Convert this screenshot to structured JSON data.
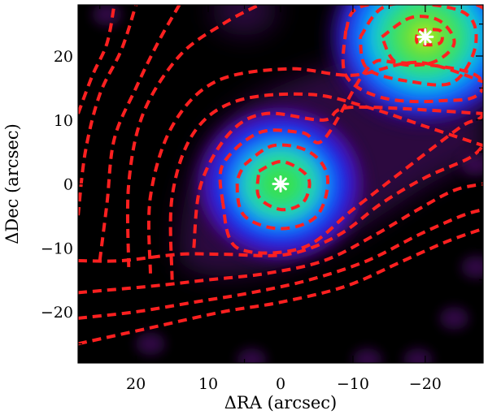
{
  "chart_data": {
    "type": "heatmap",
    "title": "",
    "xlabel": "ΔRA (arcsec)",
    "ylabel": "ΔDec (arcsec)",
    "xlim": [
      28,
      -28
    ],
    "ylim": [
      -28,
      28
    ],
    "x_reversed": true,
    "xticks": [
      20,
      10,
      0,
      -10,
      -20
    ],
    "xtick_labels": [
      "20",
      "10",
      "0",
      "−10",
      "−20"
    ],
    "yticks": [
      20,
      10,
      0,
      -10,
      -20
    ],
    "ytick_labels": [
      "20",
      "10",
      "0",
      "−10",
      "−20"
    ],
    "colormap": "black-purple-blue-cyan-green-yellow",
    "background_color": "#000000",
    "contour_color": "#ff2020",
    "contour_style": "dashed",
    "marker_color": "#ffffff",
    "sources": [
      {
        "x": 0,
        "y": 0,
        "peak_color": "green",
        "core_radius": 6
      },
      {
        "x": -20,
        "y": 23,
        "peak_color": "yellow-green",
        "core_radius": 7
      }
    ],
    "markers": [
      {
        "x": 0,
        "y": 0,
        "symbol": "asterisk"
      },
      {
        "x": -20,
        "y": 23,
        "symbol": "asterisk"
      }
    ],
    "contours": [
      {
        "level": 1,
        "points": [
          [
            -14,
            23
          ],
          [
            -18,
            26
          ],
          [
            -22,
            25.5
          ],
          [
            -24,
            22
          ],
          [
            -21,
            19
          ],
          [
            -16,
            19
          ],
          [
            -14,
            23
          ]
        ]
      },
      {
        "level": 2,
        "points": [
          [
            -11,
            23
          ],
          [
            -15,
            28
          ],
          [
            -25,
            27
          ],
          [
            -27,
            22
          ],
          [
            -24,
            16
          ],
          [
            -18,
            16
          ],
          [
            -12,
            18
          ],
          [
            -11,
            23
          ]
        ]
      },
      {
        "level": 3,
        "points": [
          [
            -9,
            24
          ],
          [
            -12,
            28
          ],
          [
            -28,
            27.5
          ],
          [
            -28,
            15
          ],
          [
            -22,
            13
          ],
          [
            -14,
            13.5
          ],
          [
            -9,
            17
          ],
          [
            -9,
            24
          ]
        ]
      },
      {
        "level": 4,
        "points": [
          [
            -19,
            24
          ],
          [
            -22,
            24
          ],
          [
            -22,
            22
          ],
          [
            -19,
            22
          ],
          [
            -19,
            24
          ]
        ]
      },
      {
        "level": 5,
        "points": [
          [
            3,
            2
          ],
          [
            0,
            3.5
          ],
          [
            -3,
            2
          ],
          [
            -4,
            0
          ],
          [
            -3,
            -3
          ],
          [
            0,
            -4
          ],
          [
            3,
            -2
          ],
          [
            3,
            2
          ]
        ]
      },
      {
        "level": 6,
        "points": [
          [
            5,
            3
          ],
          [
            1,
            6
          ],
          [
            -4,
            5
          ],
          [
            -6.5,
            1
          ],
          [
            -5,
            -5
          ],
          [
            0,
            -7
          ],
          [
            5,
            -5
          ],
          [
            6,
            0
          ],
          [
            5,
            3
          ]
        ]
      },
      {
        "level": 7,
        "points": [
          [
            8,
            -3
          ],
          [
            8,
            3
          ],
          [
            3,
            8
          ],
          [
            -3,
            8
          ],
          [
            -6,
            7
          ],
          [
            -12,
            18
          ],
          [
            -16,
            19
          ],
          [
            -27,
            17
          ],
          [
            -28,
            11
          ],
          [
            -25,
            9
          ],
          [
            -18,
            3
          ],
          [
            -10,
            -4
          ],
          [
            -3,
            -10
          ],
          [
            6,
            -10
          ],
          [
            8,
            -3
          ]
        ]
      },
      {
        "level": 8,
        "points": [
          [
            12,
            -10
          ],
          [
            11,
            0
          ],
          [
            7,
            8
          ],
          [
            2,
            11
          ],
          [
            -6,
            10
          ],
          [
            -10,
            12
          ],
          [
            -28,
            11
          ]
        ]
      },
      {
        "level": 9,
        "points": [
          [
            15,
            -15
          ],
          [
            15,
            -2
          ],
          [
            12,
            8
          ],
          [
            6,
            13
          ],
          [
            -4,
            14
          ],
          [
            -12,
            12
          ],
          [
            -20,
            9
          ],
          [
            -28,
            6
          ]
        ]
      },
      {
        "level": 10,
        "points": [
          [
            18,
            -14
          ],
          [
            18,
            -2
          ],
          [
            15,
            9
          ],
          [
            9,
            16
          ],
          [
            -1,
            18
          ],
          [
            -10,
            17
          ],
          [
            -19,
            19
          ],
          [
            -28,
            16
          ]
        ]
      },
      {
        "level": 11,
        "points": [
          [
            21,
            -13
          ],
          [
            21,
            0
          ],
          [
            19,
            11
          ],
          [
            14,
            20
          ],
          [
            8,
            25
          ],
          [
            3,
            28
          ]
        ]
      },
      {
        "level": 12,
        "points": [
          [
            25,
            -12
          ],
          [
            24,
            -3
          ],
          [
            23,
            7
          ],
          [
            20,
            15
          ],
          [
            17,
            22
          ],
          [
            14,
            28
          ]
        ]
      },
      {
        "level": 13,
        "points": [
          [
            28,
            -5
          ],
          [
            27,
            5
          ],
          [
            25,
            14
          ],
          [
            22,
            21
          ],
          [
            20,
            28
          ]
        ]
      },
      {
        "level": 14,
        "points": [
          [
            28,
            11
          ],
          [
            26,
            17
          ],
          [
            24,
            22
          ],
          [
            23,
            28
          ]
        ]
      },
      {
        "level": 15,
        "points": [
          [
            28,
            -12
          ],
          [
            22,
            -12
          ],
          [
            14,
            -11
          ],
          [
            8,
            -11
          ],
          [
            -1,
            -11
          ],
          [
            -8,
            -8
          ],
          [
            -14,
            -3
          ],
          [
            -20,
            1
          ],
          [
            -26,
            4
          ],
          [
            -28,
            6
          ]
        ]
      },
      {
        "level": 16,
        "points": [
          [
            28,
            -17
          ],
          [
            18,
            -16
          ],
          [
            10,
            -15
          ],
          [
            2,
            -14
          ],
          [
            -6,
            -12
          ],
          [
            -13,
            -8
          ],
          [
            -19,
            -4
          ],
          [
            -24,
            -1
          ],
          [
            -28,
            0
          ]
        ]
      },
      {
        "level": 17,
        "points": [
          [
            28,
            -21
          ],
          [
            20,
            -20
          ],
          [
            12,
            -18.5
          ],
          [
            4,
            -17
          ],
          [
            -4,
            -15
          ],
          [
            -12,
            -12
          ],
          [
            -19,
            -8
          ],
          [
            -25,
            -5
          ],
          [
            -28,
            -4
          ]
        ]
      },
      {
        "level": 18,
        "points": [
          [
            28,
            -25
          ],
          [
            18,
            -22.5
          ],
          [
            8,
            -20
          ],
          [
            0,
            -18.5
          ],
          [
            -9,
            -16
          ],
          [
            -17,
            -12
          ],
          [
            -23,
            -9
          ],
          [
            -28,
            -7
          ]
        ]
      }
    ],
    "faint_spots": [
      {
        "x": 24,
        "y": 26.5
      },
      {
        "x": 18,
        "y": -25
      },
      {
        "x": 4,
        "y": -27.5
      },
      {
        "x": -12,
        "y": -27.5
      },
      {
        "x": -19,
        "y": -27.5
      },
      {
        "x": -24,
        "y": -21
      },
      {
        "x": -27,
        "y": -13
      },
      {
        "x": -27,
        "y": 3
      }
    ]
  }
}
